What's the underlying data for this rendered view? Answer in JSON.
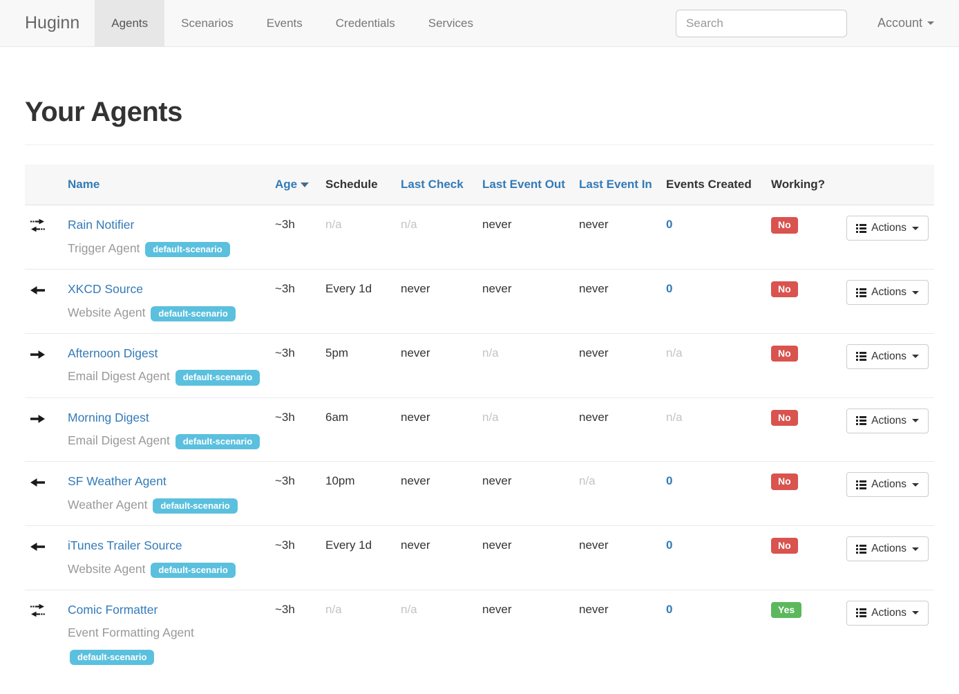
{
  "navbar": {
    "brand": "Huginn",
    "items": [
      {
        "label": "Agents",
        "active": true
      },
      {
        "label": "Scenarios",
        "active": false
      },
      {
        "label": "Events",
        "active": false
      },
      {
        "label": "Credentials",
        "active": false
      },
      {
        "label": "Services",
        "active": false
      }
    ],
    "search_placeholder": "Search",
    "account_label": "Account"
  },
  "page": {
    "title": "Your Agents"
  },
  "table": {
    "headers": {
      "name": "Name",
      "age": "Age",
      "schedule": "Schedule",
      "last_check": "Last Check",
      "last_event_out": "Last Event Out",
      "last_event_in": "Last Event In",
      "events_created": "Events Created",
      "working": "Working?"
    },
    "sort": {
      "column": "Age",
      "direction": "desc"
    },
    "rows": [
      {
        "icon": "arrows-swap",
        "name": "Rain Notifier",
        "type": "Trigger Agent",
        "badge": "default-scenario",
        "age": "~3h",
        "schedule": "n/a",
        "schedule_muted": true,
        "last_check": "n/a",
        "last_check_muted": true,
        "last_event_out": "never",
        "last_event_out_muted": false,
        "last_event_in": "never",
        "last_event_in_muted": false,
        "events_created": "0",
        "events_created_link": true,
        "working": "No",
        "working_class": "label-danger",
        "actions_label": "Actions"
      },
      {
        "icon": "arrow-left",
        "name": "XKCD Source",
        "type": "Website Agent",
        "badge": "default-scenario",
        "age": "~3h",
        "schedule": "Every 1d",
        "schedule_muted": false,
        "last_check": "never",
        "last_check_muted": false,
        "last_event_out": "never",
        "last_event_out_muted": false,
        "last_event_in": "never",
        "last_event_in_muted": false,
        "events_created": "0",
        "events_created_link": true,
        "working": "No",
        "working_class": "label-danger",
        "actions_label": "Actions"
      },
      {
        "icon": "arrow-right",
        "name": "Afternoon Digest",
        "type": "Email Digest Agent",
        "badge": "default-scenario",
        "age": "~3h",
        "schedule": "5pm",
        "schedule_muted": false,
        "last_check": "never",
        "last_check_muted": false,
        "last_event_out": "n/a",
        "last_event_out_muted": true,
        "last_event_in": "never",
        "last_event_in_muted": false,
        "events_created": "n/a",
        "events_created_link": false,
        "working": "No",
        "working_class": "label-danger",
        "actions_label": "Actions"
      },
      {
        "icon": "arrow-right",
        "name": "Morning Digest",
        "type": "Email Digest Agent",
        "badge": "default-scenario",
        "age": "~3h",
        "schedule": "6am",
        "schedule_muted": false,
        "last_check": "never",
        "last_check_muted": false,
        "last_event_out": "n/a",
        "last_event_out_muted": true,
        "last_event_in": "never",
        "last_event_in_muted": false,
        "events_created": "n/a",
        "events_created_link": false,
        "working": "No",
        "working_class": "label-danger",
        "actions_label": "Actions"
      },
      {
        "icon": "arrow-left",
        "name": "SF Weather Agent",
        "type": "Weather Agent",
        "badge": "default-scenario",
        "age": "~3h",
        "schedule": "10pm",
        "schedule_muted": false,
        "last_check": "never",
        "last_check_muted": false,
        "last_event_out": "never",
        "last_event_out_muted": false,
        "last_event_in": "n/a",
        "last_event_in_muted": true,
        "events_created": "0",
        "events_created_link": true,
        "working": "No",
        "working_class": "label-danger",
        "actions_label": "Actions"
      },
      {
        "icon": "arrow-left",
        "name": "iTunes Trailer Source",
        "type": "Website Agent",
        "badge": "default-scenario",
        "age": "~3h",
        "schedule": "Every 1d",
        "schedule_muted": false,
        "last_check": "never",
        "last_check_muted": false,
        "last_event_out": "never",
        "last_event_out_muted": false,
        "last_event_in": "never",
        "last_event_in_muted": false,
        "events_created": "0",
        "events_created_link": true,
        "working": "No",
        "working_class": "label-danger",
        "actions_label": "Actions"
      },
      {
        "icon": "arrows-swap",
        "name": "Comic Formatter",
        "type": "Event Formatting Agent",
        "badge": "default-scenario",
        "age": "~3h",
        "schedule": "n/a",
        "schedule_muted": true,
        "last_check": "n/a",
        "last_check_muted": true,
        "last_event_out": "never",
        "last_event_out_muted": false,
        "last_event_in": "never",
        "last_event_in_muted": false,
        "events_created": "0",
        "events_created_link": true,
        "working": "Yes",
        "working_class": "label-success",
        "actions_label": "Actions"
      }
    ]
  },
  "colors": {
    "link_blue": "#337ab7",
    "badge_info": "#5bc0de",
    "label_danger": "#d9534f",
    "label_success": "#5cb85c",
    "muted_text": "#c3c3c3",
    "navbar_bg": "#f8f8f8",
    "navbar_active_bg": "#e7e7e7"
  }
}
